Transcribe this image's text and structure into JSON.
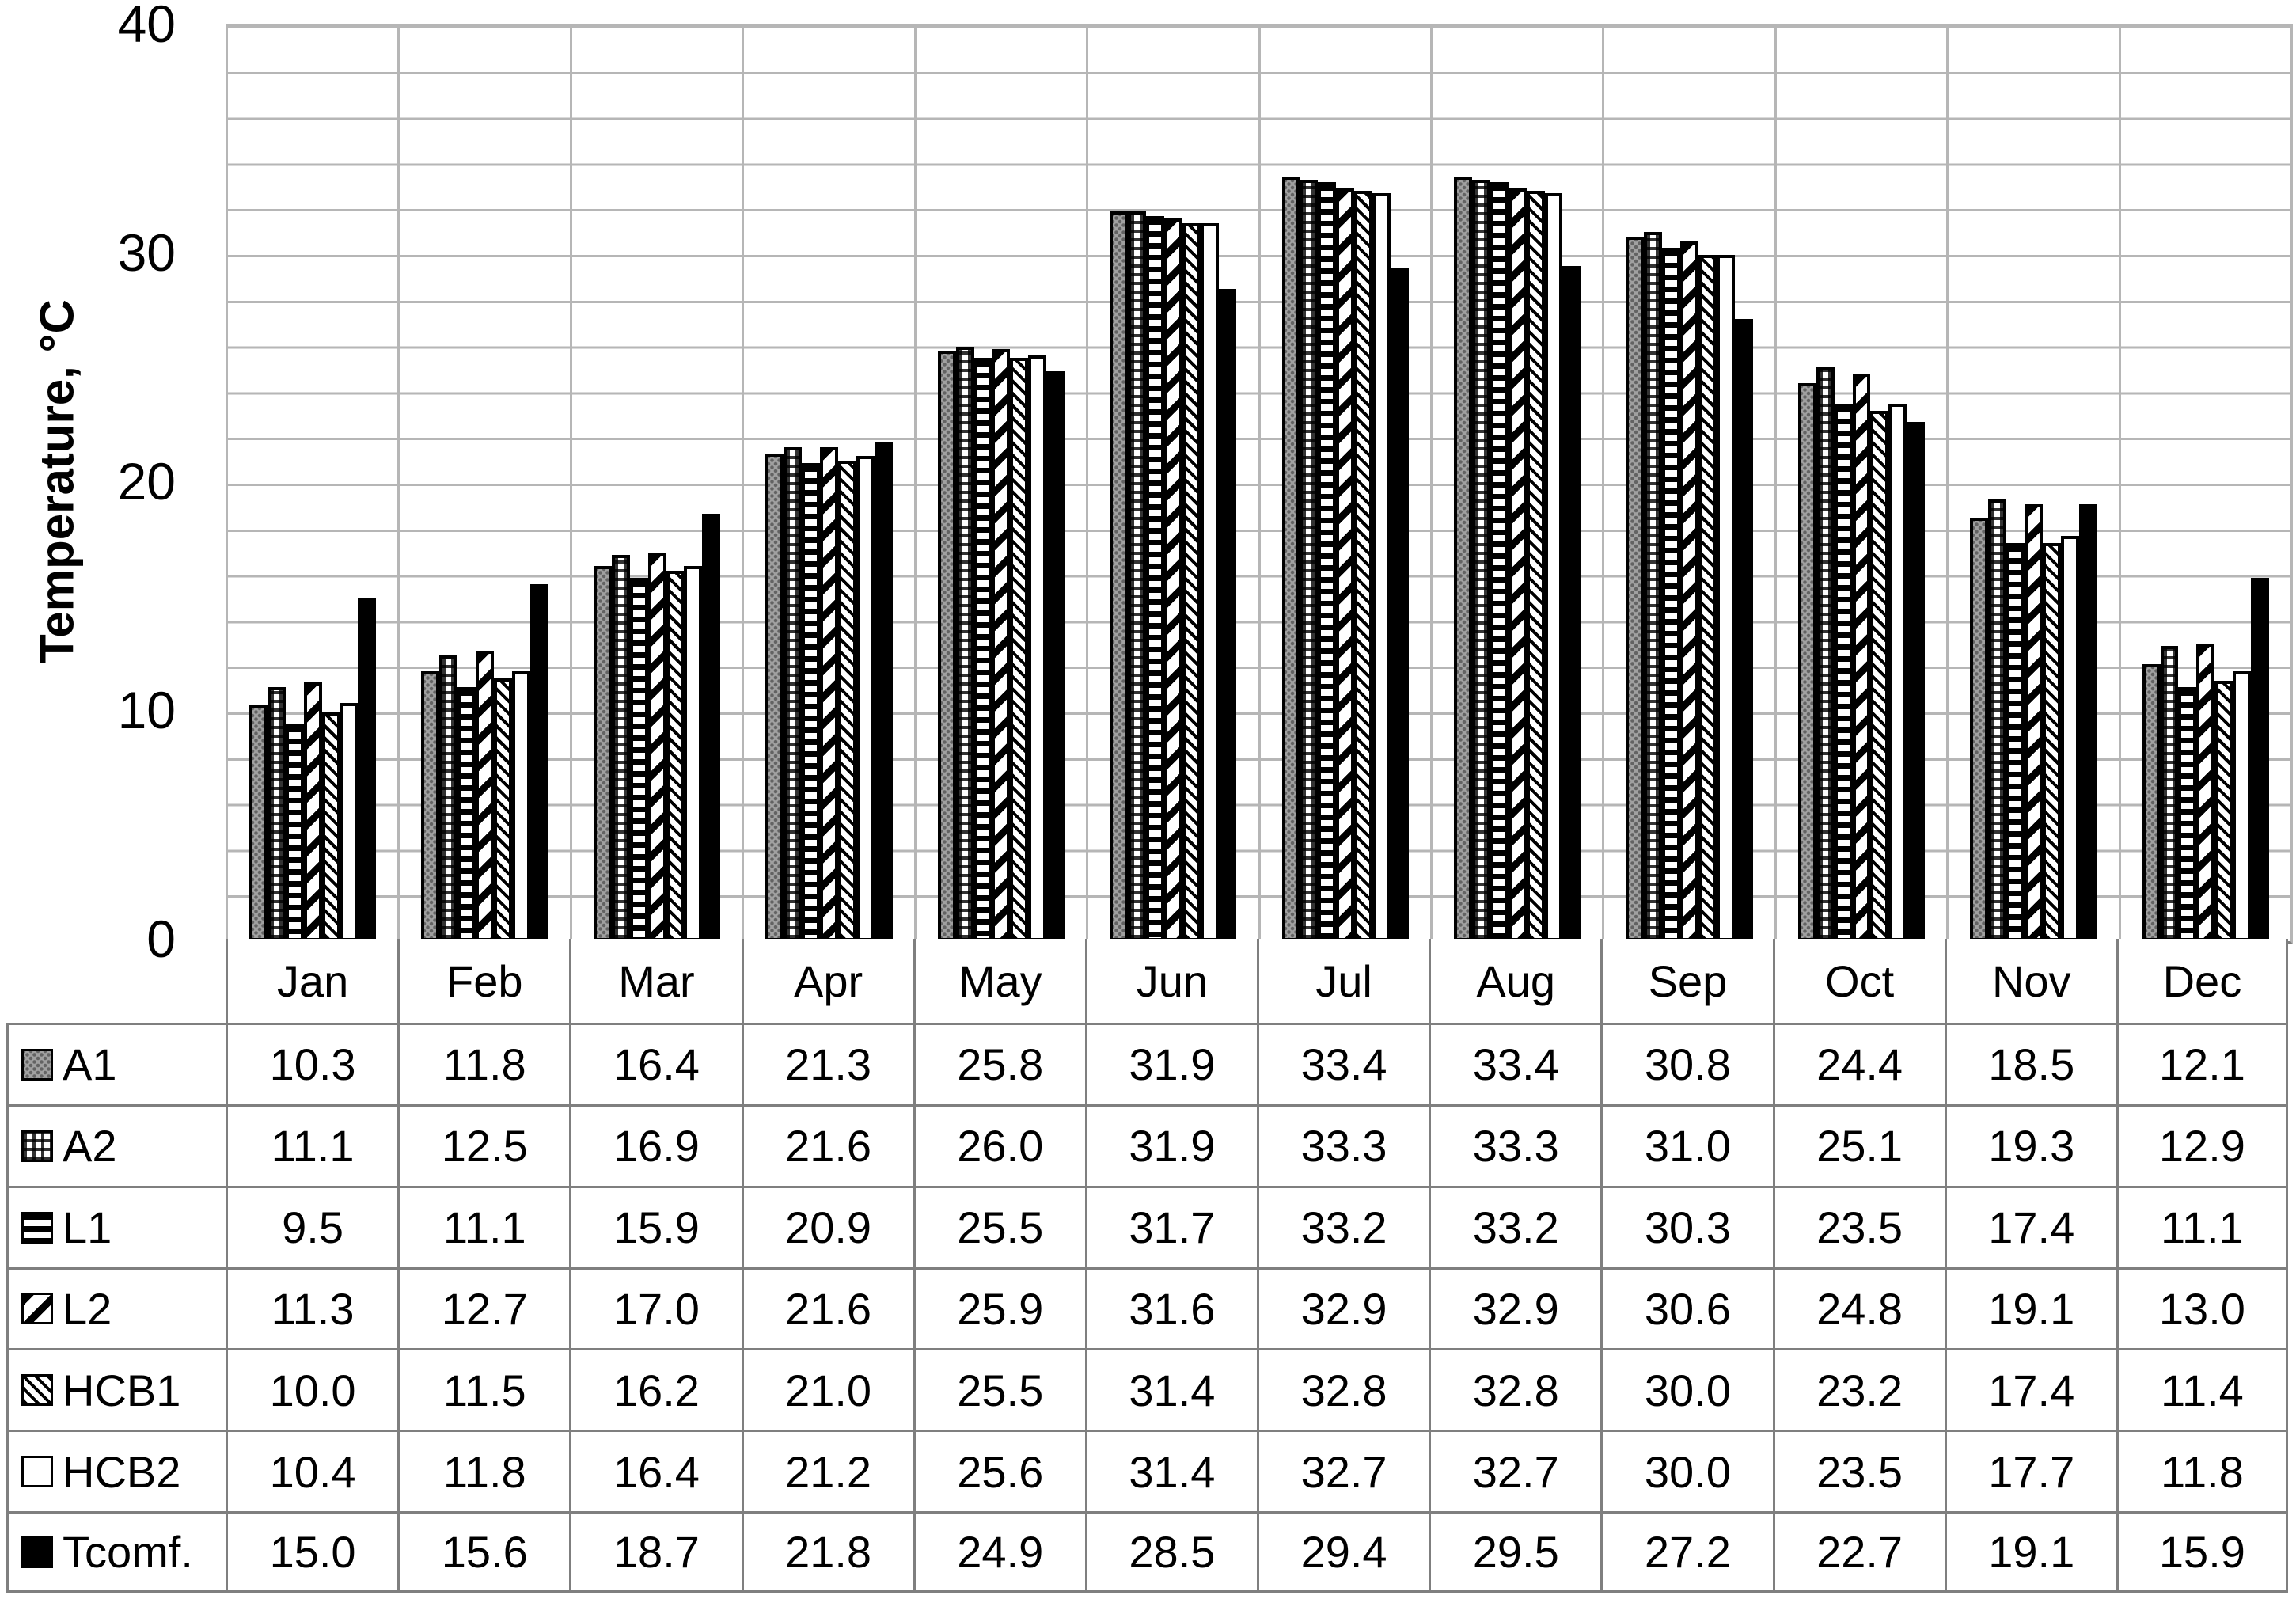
{
  "chart_data": {
    "type": "bar",
    "title": "",
    "xlabel": "",
    "ylabel": "Temperature, °C",
    "ylim": [
      0,
      40
    ],
    "y_major_ticks": [
      0,
      10,
      20,
      30,
      40
    ],
    "y_minor_step": 2,
    "grid": true,
    "legend_position": "table-left",
    "categories": [
      "Jan",
      "Feb",
      "Mar",
      "Apr",
      "May",
      "Jun",
      "Jul",
      "Aug",
      "Sep",
      "Oct",
      "Nov",
      "Dec"
    ],
    "series": [
      {
        "name": "A1",
        "pattern": "gray-dotted",
        "values": [
          10.3,
          11.8,
          16.4,
          21.3,
          25.8,
          31.9,
          33.4,
          33.4,
          30.8,
          24.4,
          18.5,
          12.1
        ]
      },
      {
        "name": "A2",
        "pattern": "plaid",
        "values": [
          11.1,
          12.5,
          16.9,
          21.6,
          26.0,
          31.9,
          33.3,
          33.3,
          31.0,
          25.1,
          19.3,
          12.9
        ]
      },
      {
        "name": "L1",
        "pattern": "horizontal-stripes",
        "values": [
          9.5,
          11.1,
          15.9,
          20.9,
          25.5,
          31.7,
          33.2,
          33.2,
          30.3,
          23.5,
          17.4,
          11.1
        ]
      },
      {
        "name": "L2",
        "pattern": "diagonal-stripes-up",
        "values": [
          11.3,
          12.7,
          17.0,
          21.6,
          25.9,
          31.6,
          32.9,
          32.9,
          30.6,
          24.8,
          19.1,
          13.0
        ]
      },
      {
        "name": "HCB1",
        "pattern": "diagonal-stripes-down",
        "values": [
          10.0,
          11.5,
          16.2,
          21.0,
          25.5,
          31.4,
          32.8,
          32.8,
          30.0,
          23.2,
          17.4,
          11.4
        ]
      },
      {
        "name": "HCB2",
        "pattern": "white",
        "values": [
          10.4,
          11.8,
          16.4,
          21.2,
          25.6,
          31.4,
          32.7,
          32.7,
          30.0,
          23.5,
          17.7,
          11.8
        ]
      },
      {
        "name": "Tcomf.",
        "pattern": "solid-black",
        "values": [
          15.0,
          15.6,
          18.7,
          21.8,
          24.9,
          28.5,
          29.4,
          29.5,
          27.2,
          22.7,
          19.1,
          15.9
        ]
      }
    ]
  },
  "colors": {
    "background": "#ffffff",
    "gridline": "#b6b6b6",
    "axis_line": "#7f7f7f",
    "table_border": "#7f7f7f",
    "bar_outline": "#000000",
    "a1_gray": "#a0a0a0",
    "text": "#000000"
  }
}
